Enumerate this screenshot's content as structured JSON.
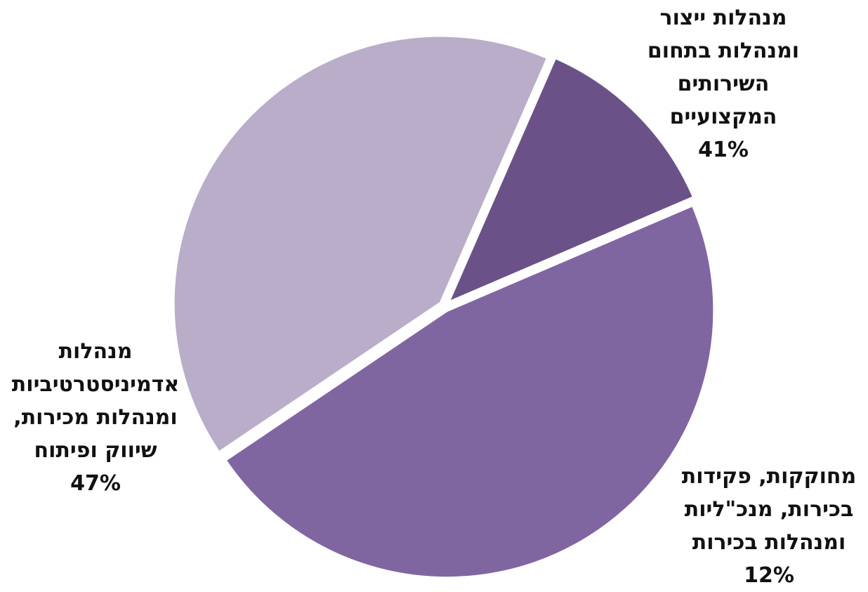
{
  "chart_data": {
    "type": "pie",
    "slices": [
      {
        "label_lines": [
          "מנהלות ייצור",
          "ומנהלות בתחום",
          "השירותים",
          "המקצועיים"
        ],
        "percent_label": "41%",
        "value": 41,
        "color": "#b9adc9"
      },
      {
        "label_lines": [
          "מחוקקות, פקידות",
          "בכירות, מנכ\"ליות",
          "ומנהלות בכירות"
        ],
        "percent_label": "12%",
        "value": 12,
        "color": "#6a5289"
      },
      {
        "label_lines": [
          "מנהלות",
          "אדמיניסטרטיביות",
          "ומנהלות מכירות,",
          "שיווק ופיתוח"
        ],
        "percent_label": "47%",
        "value": 47,
        "color": "#8066a1"
      }
    ]
  }
}
